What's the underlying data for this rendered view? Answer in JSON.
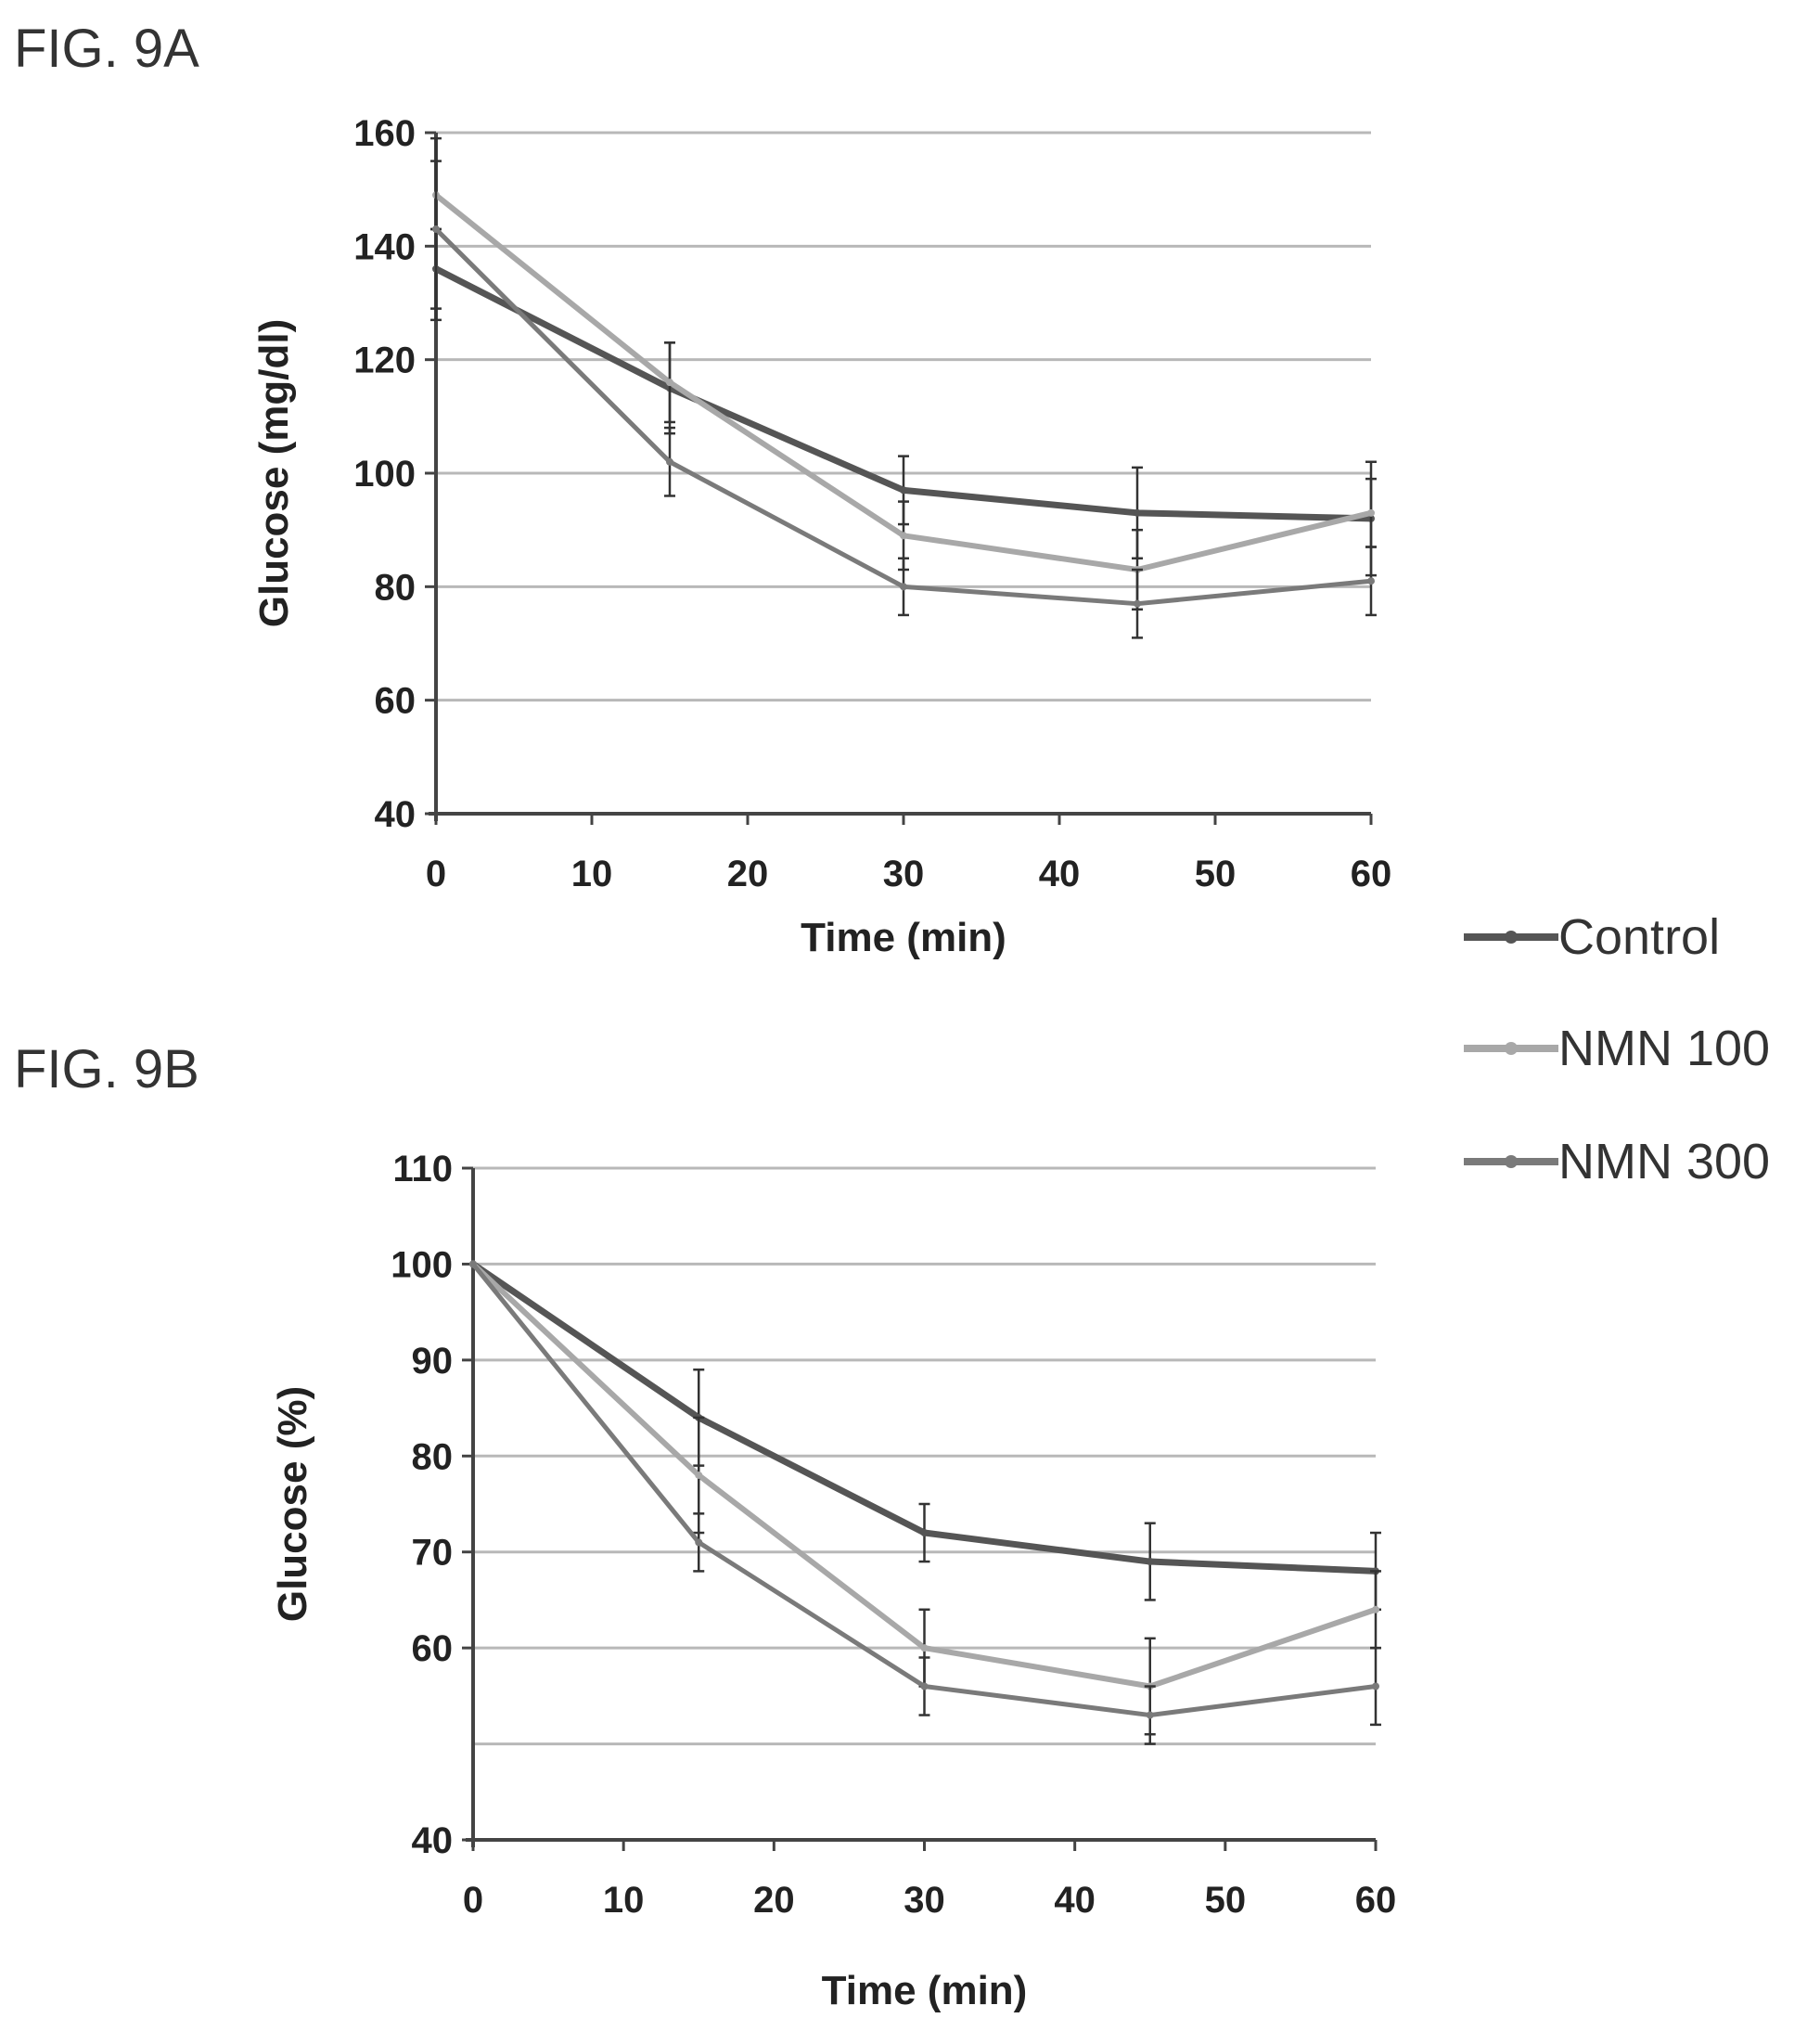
{
  "colors": {
    "Control": "#555555",
    "NMN 100": "#a8a8a8",
    "NMN 300": "#7a7a7a",
    "grid": "#b8b8b8",
    "axis": "#444444"
  },
  "legend": {
    "placement": "right",
    "entries": [
      "Control",
      "NMN 100",
      "NMN 300"
    ]
  },
  "chart_data": [
    {
      "type": "line",
      "figure_label": "FIG. 9A",
      "xlabel": "Time (min)",
      "ylabel": "Glucose (mg/dl)",
      "xlim": [
        0,
        60
      ],
      "ylim": [
        40,
        160
      ],
      "xticks": [
        0,
        10,
        20,
        30,
        40,
        50,
        60
      ],
      "yticks": [
        40,
        60,
        80,
        100,
        120,
        140,
        160
      ],
      "grid_lines": [
        60,
        80,
        100,
        120,
        140,
        160
      ],
      "x": [
        0,
        15,
        30,
        45,
        60
      ],
      "series": [
        {
          "name": "Control",
          "values": [
            136,
            115,
            97,
            93,
            92
          ],
          "errors": [
            7,
            8,
            6,
            8,
            10
          ]
        },
        {
          "name": "NMN 100",
          "values": [
            149,
            116,
            89,
            83,
            93
          ],
          "errors": [
            6,
            7,
            6,
            7,
            6
          ]
        },
        {
          "name": "NMN 300",
          "values": [
            143,
            102,
            80,
            77,
            81
          ],
          "errors": [
            16,
            6,
            5,
            6,
            6
          ]
        }
      ]
    },
    {
      "type": "line",
      "figure_label": "FIG. 9B",
      "xlabel": "Time (min)",
      "ylabel": "Glucose (%)",
      "xlim": [
        0,
        60
      ],
      "ylim": [
        40,
        110
      ],
      "xticks": [
        0,
        10,
        20,
        30,
        40,
        50,
        60
      ],
      "yticks": [
        40,
        60,
        70,
        80,
        90,
        100,
        110
      ],
      "grid_lines": [
        50,
        60,
        70,
        80,
        90,
        100,
        110
      ],
      "x": [
        0,
        15,
        30,
        45,
        60
      ],
      "series": [
        {
          "name": "Control",
          "values": [
            100,
            84,
            72,
            69,
            68
          ],
          "errors": [
            0,
            5,
            3,
            4,
            4
          ]
        },
        {
          "name": "NMN 100",
          "values": [
            100,
            78,
            60,
            56,
            64
          ],
          "errors": [
            0,
            6,
            4,
            5,
            4
          ]
        },
        {
          "name": "NMN 300",
          "values": [
            100,
            71,
            56,
            53,
            56
          ],
          "errors": [
            0,
            3,
            3,
            3,
            4
          ]
        }
      ]
    }
  ]
}
